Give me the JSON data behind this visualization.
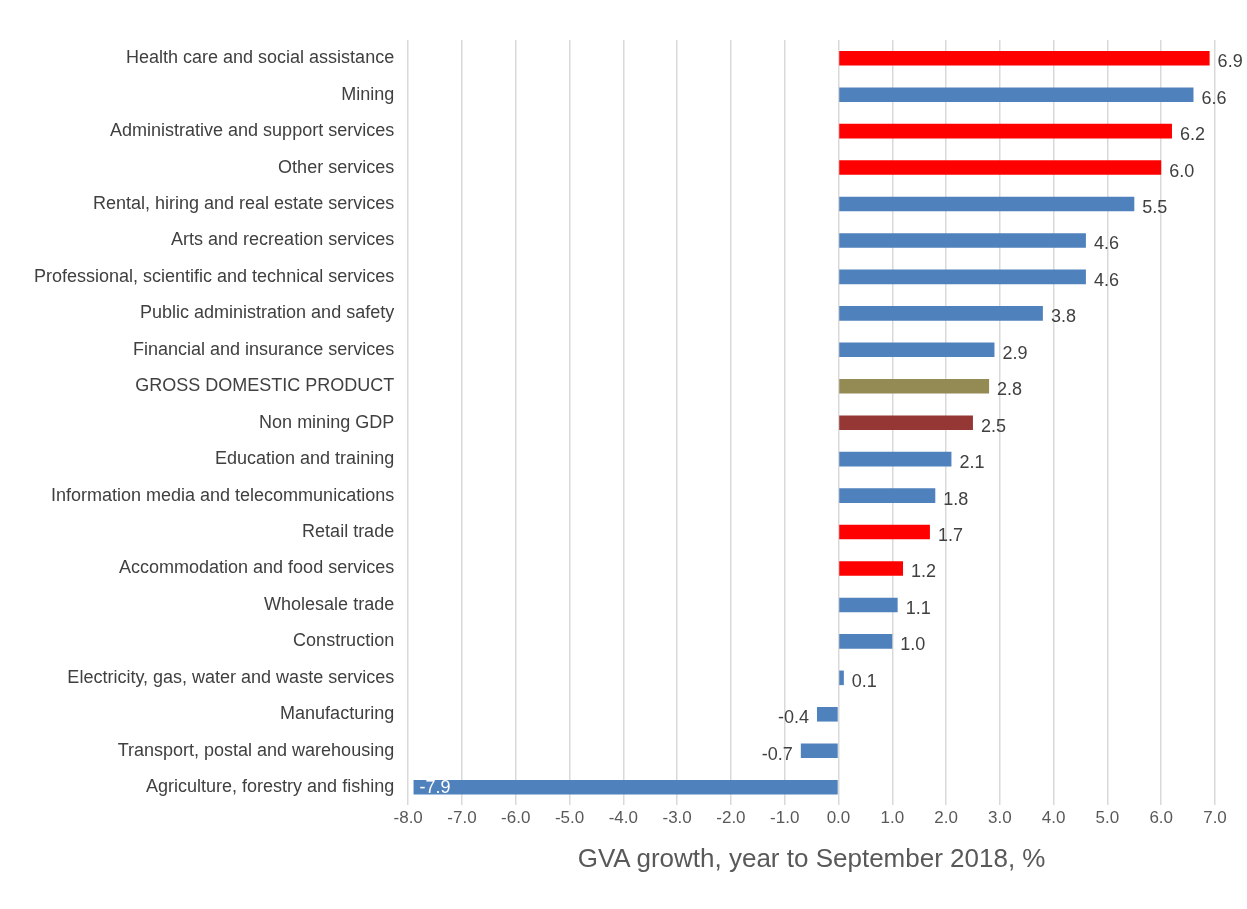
{
  "chart_data": {
    "type": "bar",
    "orientation": "horizontal",
    "xlabel": "GVA growth, year to September 2018, %",
    "categories": [
      "Health care and social assistance",
      "Mining",
      "Administrative and support services",
      "Other services",
      "Rental, hiring and real estate services",
      "Arts and recreation services",
      "Professional, scientific and technical services",
      "Public administration and safety",
      "Financial and insurance services",
      "GROSS DOMESTIC PRODUCT",
      "Non mining GDP",
      "Education and training",
      "Information media and telecommunications",
      "Retail trade",
      "Accommodation and food services",
      "Wholesale trade",
      "Construction",
      "Electricity, gas, water and waste services",
      "Manufacturing",
      "Transport, postal and warehousing",
      "Agriculture, forestry and fishing"
    ],
    "values": [
      6.9,
      6.6,
      6.2,
      6.0,
      5.5,
      4.6,
      4.6,
      3.8,
      2.9,
      2.8,
      2.5,
      2.1,
      1.8,
      1.7,
      1.2,
      1.1,
      1.0,
      0.1,
      -0.4,
      -0.7,
      -7.9
    ],
    "value_labels": [
      "6.9",
      "6.6",
      "6.2",
      "6.0",
      "5.5",
      "4.6",
      "4.6",
      "3.8",
      "2.9",
      "2.8",
      "2.5",
      "2.1",
      "1.8",
      "1.7",
      "1.2",
      "1.1",
      "1.0",
      "0.1",
      "-0.4",
      "-0.7",
      "-7.9"
    ],
    "colors": [
      "#ff0000",
      "#4f81bd",
      "#ff0000",
      "#ff0000",
      "#4f81bd",
      "#4f81bd",
      "#4f81bd",
      "#4f81bd",
      "#4f81bd",
      "#948a54",
      "#953735",
      "#4f81bd",
      "#4f81bd",
      "#ff0000",
      "#ff0000",
      "#4f81bd",
      "#4f81bd",
      "#4f81bd",
      "#4f81bd",
      "#4f81bd",
      "#4f81bd"
    ],
    "xlim": [
      -8,
      7
    ],
    "xticks": [
      {
        "value": -8,
        "label": "-8.0"
      },
      {
        "value": -7,
        "label": "-7.0"
      },
      {
        "value": -6,
        "label": "-6.0"
      },
      {
        "value": -5,
        "label": "-5.0"
      },
      {
        "value": -4,
        "label": "-4.0"
      },
      {
        "value": -3,
        "label": "-3.0"
      },
      {
        "value": -2,
        "label": "-2.0"
      },
      {
        "value": -1,
        "label": "-1.0"
      },
      {
        "value": 0,
        "label": "0.0"
      },
      {
        "value": 1,
        "label": "1.0"
      },
      {
        "value": 2,
        "label": "2.0"
      },
      {
        "value": 3,
        "label": "3.0"
      },
      {
        "value": 4,
        "label": "4.0"
      },
      {
        "value": 5,
        "label": "5.0"
      },
      {
        "value": 6,
        "label": "6.0"
      },
      {
        "value": 7,
        "label": "7.0"
      }
    ],
    "grid": "x",
    "legend": false
  }
}
